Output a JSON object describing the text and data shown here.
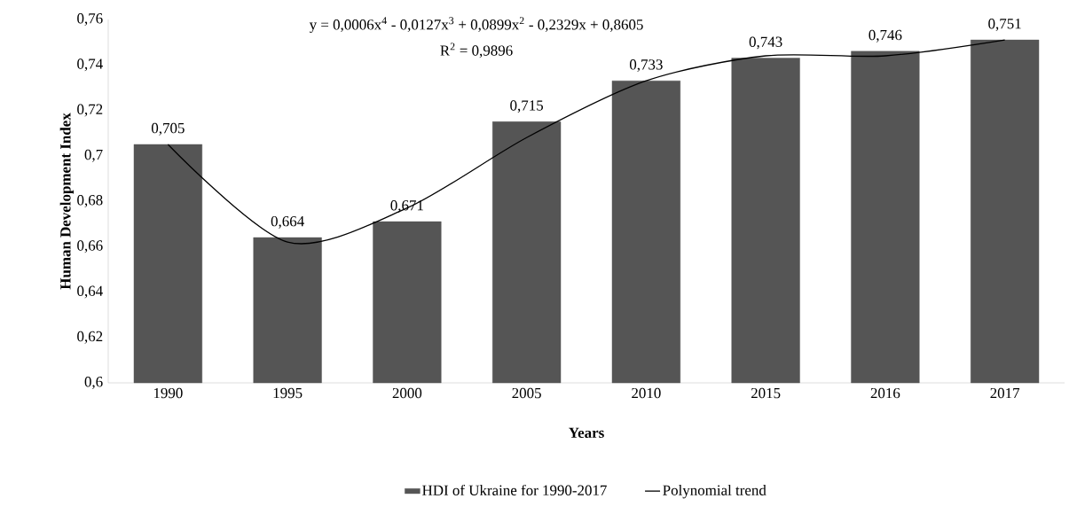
{
  "chart_data": {
    "type": "bar",
    "categories": [
      "1990",
      "1995",
      "2000",
      "2005",
      "2010",
      "2015",
      "2016",
      "2017"
    ],
    "series": [
      {
        "name": "HDI of Ukraine for 1990-2017",
        "color": "#555555",
        "values": [
          0.705,
          0.664,
          0.671,
          0.715,
          0.733,
          0.743,
          0.746,
          0.751
        ],
        "value_labels": [
          "0,705",
          "0,664",
          "0,671",
          "0,715",
          "0,733",
          "0,743",
          "0,746",
          "0,751"
        ]
      },
      {
        "name": "Polynomial trend",
        "type": "line",
        "color": "#000000",
        "line_style": "solid",
        "values": [
          0.705,
          0.662,
          0.677,
          0.708,
          0.733,
          0.744,
          0.744,
          0.751
        ]
      }
    ],
    "xlabel": "Years",
    "ylabel": "Human Development Index",
    "annotations": [
      "y = 0,0006x$^{4}$ - 0,0127x$^{3}$ + 0,0899x$^{2}$ - 0,2329x + 0,8605",
      "R$^{2}$ = 0,9896"
    ],
    "ylim": [
      0.6,
      0.76
    ],
    "yticks": [
      {
        "value": 0.6,
        "label": "0,6"
      },
      {
        "value": 0.62,
        "label": "0,62"
      },
      {
        "value": 0.64,
        "label": "0,64"
      },
      {
        "value": 0.66,
        "label": "0,66"
      },
      {
        "value": 0.68,
        "label": "0,68"
      },
      {
        "value": 0.7,
        "label": "0,7"
      },
      {
        "value": 0.72,
        "label": "0,72"
      },
      {
        "value": 0.74,
        "label": "0,74"
      },
      {
        "value": 0.76,
        "label": "0,76"
      }
    ],
    "legend": "bottom",
    "grid": false,
    "marker": "none"
  }
}
